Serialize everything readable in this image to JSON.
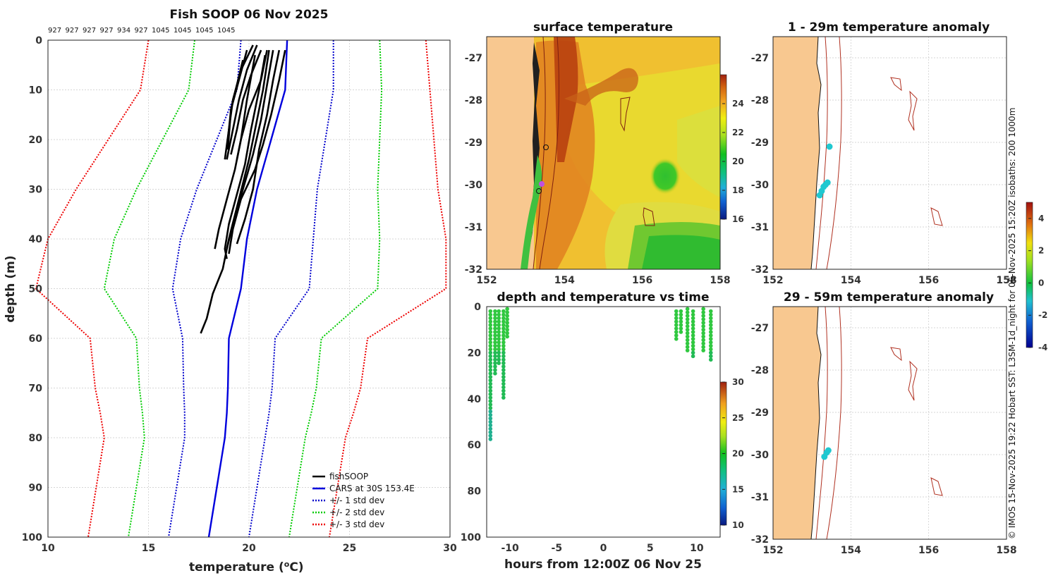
{
  "chart_data": [
    {
      "type": "line",
      "title": "Fish SOOP 06 Nov 2025",
      "top_labels": [
        "927",
        "927",
        "927",
        "927",
        "934",
        "927",
        "1045",
        "1045",
        "1045",
        "1045"
      ],
      "xlabel": "temperature (",
      "xlabel_sup": "o",
      "xlabel_unit": "C)",
      "ylabel": "depth (m)",
      "xlim": [
        10,
        30
      ],
      "ylim": [
        0,
        100
      ],
      "x_ticks": [
        10,
        15,
        20,
        25,
        30
      ],
      "y_ticks": [
        0,
        10,
        20,
        30,
        40,
        50,
        60,
        70,
        80,
        90,
        100
      ],
      "legend": [
        "fishSOOP",
        "CARS at 30S 153.4E",
        "+/- 1 std dev",
        "+/- 2 std dev",
        "+/- 3 std dev"
      ],
      "colors": {
        "fishSOOP": "#000000",
        "cars": "#0000dd",
        "std1": "#0000cc",
        "std2": "#00cc00",
        "std3": "#ee0000"
      },
      "cars_depth": [
        0,
        10,
        20,
        30,
        40,
        50,
        60,
        70,
        75,
        80,
        90,
        100
      ],
      "cars_temp": [
        21.9,
        21.8,
        21.1,
        20.4,
        19.9,
        19.6,
        19.0,
        18.95,
        18.9,
        18.8,
        18.4,
        18.0
      ],
      "std_offsets": {
        "std1": [
          [
            0,
            2.3
          ],
          [
            10,
            2.4
          ],
          [
            20,
            2.7
          ],
          [
            30,
            3.0
          ],
          [
            40,
            3.3
          ],
          [
            50,
            3.4
          ],
          [
            60,
            2.3
          ],
          [
            70,
            2.2
          ],
          [
            80,
            2.0
          ],
          [
            90,
            2.0
          ],
          [
            100,
            2.0
          ]
        ],
        "std2": [
          [
            0,
            4.6
          ],
          [
            10,
            4.8
          ],
          [
            20,
            5.4
          ],
          [
            30,
            6.0
          ],
          [
            40,
            6.6
          ],
          [
            50,
            6.8
          ],
          [
            60,
            4.6
          ],
          [
            70,
            4.4
          ],
          [
            80,
            4.0
          ],
          [
            90,
            4.0
          ],
          [
            100,
            4.0
          ]
        ],
        "std3": [
          [
            0,
            6.9
          ],
          [
            10,
            7.2
          ],
          [
            20,
            8.1
          ],
          [
            30,
            9.0
          ],
          [
            40,
            9.9
          ],
          [
            50,
            10.2
          ],
          [
            60,
            6.9
          ],
          [
            70,
            6.6
          ],
          [
            80,
            6.0
          ],
          [
            90,
            6.0
          ],
          [
            100,
            6.0
          ]
        ]
      },
      "profiles": [
        [
          [
            20.9,
            2
          ],
          [
            20.6,
            8
          ],
          [
            20.0,
            14
          ],
          [
            19.6,
            20
          ],
          [
            19.4,
            24
          ]
        ],
        [
          [
            20.6,
            2
          ],
          [
            20.1,
            7
          ],
          [
            19.7,
            12
          ],
          [
            19.4,
            18
          ],
          [
            19.1,
            23
          ]
        ],
        [
          [
            20.4,
            1
          ],
          [
            19.9,
            6
          ],
          [
            19.5,
            12
          ],
          [
            19.2,
            18
          ],
          [
            18.9,
            24
          ]
        ],
        [
          [
            20.2,
            1
          ],
          [
            19.6,
            6
          ],
          [
            19.2,
            12
          ],
          [
            19.0,
            18
          ],
          [
            18.8,
            24
          ]
        ],
        [
          [
            19.9,
            2
          ],
          [
            19.5,
            8
          ],
          [
            19.1,
            14
          ],
          [
            18.95,
            22
          ]
        ],
        [
          [
            19.7,
            4
          ],
          [
            19.4,
            9
          ],
          [
            19.1,
            14
          ],
          [
            18.9,
            22
          ]
        ],
        [
          [
            21.5,
            2
          ],
          [
            21.2,
            8
          ],
          [
            20.9,
            15
          ],
          [
            20.5,
            22
          ],
          [
            20.2,
            30
          ],
          [
            19.8,
            36
          ],
          [
            19.4,
            41
          ]
        ],
        [
          [
            21.2,
            2
          ],
          [
            20.9,
            9
          ],
          [
            20.6,
            16
          ],
          [
            20.2,
            23
          ],
          [
            19.7,
            30
          ],
          [
            19.2,
            37
          ],
          [
            18.9,
            42
          ]
        ],
        [
          [
            21.0,
            2
          ],
          [
            20.7,
            10
          ],
          [
            20.3,
            18
          ],
          [
            20.0,
            24
          ],
          [
            19.5,
            32
          ],
          [
            19.0,
            40
          ],
          [
            18.7,
            46
          ],
          [
            18.2,
            51
          ],
          [
            17.9,
            56
          ],
          [
            17.6,
            59
          ]
        ],
        [
          [
            20.8,
            3
          ],
          [
            20.5,
            10
          ],
          [
            20.1,
            18
          ],
          [
            19.8,
            25
          ],
          [
            19.4,
            31
          ],
          [
            19.0,
            37
          ],
          [
            18.8,
            42
          ],
          [
            18.9,
            44
          ]
        ],
        [
          [
            20.3,
            3
          ],
          [
            19.9,
            12
          ],
          [
            19.6,
            20
          ],
          [
            19.3,
            26
          ],
          [
            18.9,
            32
          ],
          [
            18.5,
            38
          ],
          [
            18.3,
            42
          ]
        ],
        [
          [
            21.8,
            2
          ],
          [
            21.5,
            8
          ],
          [
            21.1,
            15
          ],
          [
            20.7,
            21
          ],
          [
            20.3,
            26
          ],
          [
            19.6,
            32
          ],
          [
            19.2,
            38
          ],
          [
            19.0,
            43
          ]
        ]
      ]
    },
    {
      "type": "heatmap",
      "title": "surface temperature",
      "xlim": [
        152,
        158
      ],
      "ylim": [
        -32,
        -26.5
      ],
      "x_ticks": [
        152,
        154,
        156,
        158
      ],
      "y_ticks": [
        -27,
        -28,
        -29,
        -30,
        -31,
        -32
      ],
      "colorbar_range": [
        16,
        26
      ],
      "colorbar_ticks": [
        24,
        22,
        20,
        18,
        16
      ]
    },
    {
      "type": "heatmap",
      "title": "1 - 29m temperature anomaly",
      "xlim": [
        152,
        158
      ],
      "ylim": [
        -32,
        -26.5
      ],
      "x_ticks": [
        152,
        154,
        156,
        158
      ],
      "y_ticks": [
        -27,
        -28,
        -29,
        -30,
        -31,
        -32
      ],
      "points": [
        [
          153.45,
          -29.1
        ],
        [
          153.4,
          -29.95
        ],
        [
          153.35,
          -30.0
        ],
        [
          153.3,
          -30.05
        ],
        [
          153.25,
          -30.15
        ],
        [
          153.2,
          -30.25
        ]
      ]
    },
    {
      "type": "scatter",
      "title": "depth and temperature vs time",
      "xlabel": "hours from 12:00Z 06 Nov 25",
      "xlim": [
        -12.5,
        12.5
      ],
      "ylim": [
        0,
        100
      ],
      "x_ticks": [
        -10,
        -5,
        0,
        5,
        10
      ],
      "y_ticks": [
        0,
        20,
        40,
        60,
        80,
        100
      ],
      "colorbar_range": [
        10,
        30
      ],
      "colorbar_ticks": [
        30,
        25,
        20,
        15,
        10
      ],
      "casts": [
        [
          -12.1,
          2,
          58
        ],
        [
          -11.6,
          2,
          30
        ],
        [
          -11.2,
          2,
          25
        ],
        [
          -10.7,
          2,
          40
        ],
        [
          -10.3,
          1,
          14
        ],
        [
          7.8,
          2,
          14
        ],
        [
          8.3,
          2,
          11
        ],
        [
          9.0,
          1,
          20
        ],
        [
          9.6,
          2,
          22
        ],
        [
          10.7,
          1,
          20
        ],
        [
          11.5,
          2,
          24
        ]
      ]
    },
    {
      "type": "heatmap",
      "title": "29 - 59m temperature anomaly",
      "xlim": [
        152,
        158
      ],
      "ylim": [
        -32,
        -26.5
      ],
      "x_ticks": [
        152,
        154,
        156,
        158
      ],
      "y_ticks": [
        -27,
        -28,
        -29,
        -30,
        -31,
        -32
      ],
      "points": [
        [
          153.42,
          -29.9
        ],
        [
          153.38,
          -29.95
        ],
        [
          153.32,
          -30.05
        ]
      ]
    },
    {
      "type": "colorbar",
      "range": [
        -4,
        5
      ],
      "ticks": [
        4,
        2,
        0,
        -2,
        -4
      ]
    }
  ],
  "credit": "© IMOS 15-Nov-2025 19:22 Hobart SST: L3SM-1d_night for 06-Nov-2025 15:20Z isobaths: 200  1000m"
}
